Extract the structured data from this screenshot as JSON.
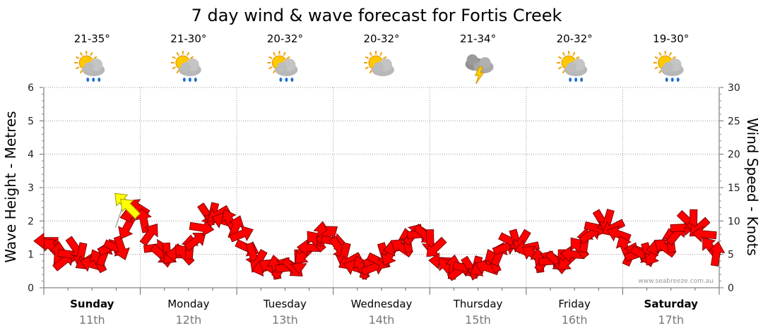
{
  "chart_data": {
    "type": "line",
    "title": "7 day wind & wave forecast for Fortis Creek",
    "ylabel_left": "Wave Height - Metres",
    "ylabel_right": "Wind Speed - Knots",
    "ylim_left": [
      0,
      6
    ],
    "ylim_right": [
      0,
      30
    ],
    "yticks_left": [
      "0",
      "1",
      "2",
      "3",
      "4",
      "5",
      "6"
    ],
    "yticks_right": [
      "0",
      "5",
      "10",
      "15",
      "20",
      "25",
      "30"
    ],
    "grid": true,
    "credit": "www.seabreeze.com.au",
    "days": [
      {
        "name": "Sunday",
        "date": "11th",
        "temp": "21-35°",
        "icon": "sun-cloud-rain-icon",
        "bold": true
      },
      {
        "name": "Monday",
        "date": "12th",
        "temp": "21-30°",
        "icon": "sun-cloud-rain-icon",
        "bold": false
      },
      {
        "name": "Tuesday",
        "date": "13th",
        "temp": "20-32°",
        "icon": "sun-cloud-rain-icon",
        "bold": false
      },
      {
        "name": "Wednesday",
        "date": "14th",
        "temp": "20-32°",
        "icon": "sun-cloud-icon",
        "bold": false
      },
      {
        "name": "Thursday",
        "date": "15th",
        "temp": "21-34°",
        "icon": "storm-icon",
        "bold": false
      },
      {
        "name": "Friday",
        "date": "16th",
        "temp": "20-32°",
        "icon": "sun-cloud-rain-icon",
        "bold": false
      },
      {
        "name": "Saturday",
        "date": "17th",
        "temp": "19-30°",
        "icon": "sun-cloud-rain-icon",
        "bold": true
      }
    ],
    "series": [
      {
        "name": "wind",
        "color": "#ff0000",
        "values": [
          7,
          6,
          5,
          4,
          5,
          6,
          5,
          4,
          3.5,
          4,
          5,
          6,
          6,
          6,
          9,
          11,
          12,
          10,
          8,
          6,
          5,
          5,
          5,
          5,
          5,
          6,
          7,
          9,
          11,
          11,
          11,
          10,
          10,
          9,
          8,
          6,
          5,
          4,
          3,
          3,
          3,
          3,
          3,
          3,
          4,
          5,
          6,
          7,
          8,
          8,
          7,
          6,
          5,
          4,
          3,
          3,
          3,
          3,
          4,
          5,
          5,
          6,
          6,
          7,
          8,
          8,
          8,
          7,
          6,
          4,
          3,
          3,
          2.5,
          3,
          3,
          3,
          3,
          3,
          4,
          5,
          6,
          7,
          7,
          7,
          6,
          5,
          4,
          4,
          4,
          4,
          4,
          4,
          5,
          6,
          7,
          8,
          9,
          10,
          10,
          9,
          8,
          6,
          5,
          5,
          5,
          5,
          5,
          6,
          6,
          7,
          8,
          9,
          10,
          10,
          9,
          8,
          6,
          5
        ]
      },
      {
        "name": "gusts",
        "color": "#ffff00",
        "values": [
          13
        ]
      }
    ]
  }
}
